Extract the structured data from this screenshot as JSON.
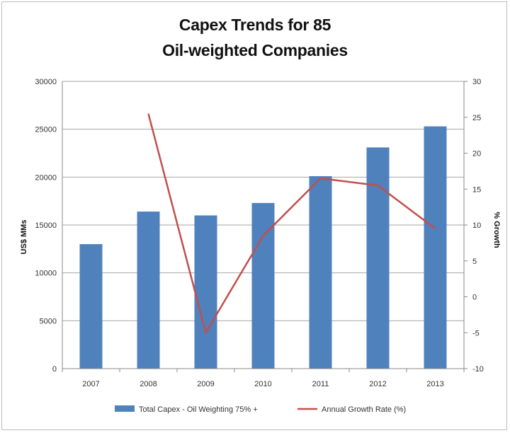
{
  "chart_data": {
    "type": "bar",
    "title_line1": "Capex Trends for 85",
    "title_line2": "Oil-weighted Companies",
    "categories": [
      "2007",
      "2008",
      "2009",
      "2010",
      "2011",
      "2012",
      "2013"
    ],
    "series": [
      {
        "name": "Total Capex - Oil Weighting 75% +",
        "type": "bar",
        "axis": "left",
        "color": "#4f81bd",
        "values": [
          13000,
          16400,
          16000,
          17300,
          20100,
          23100,
          25300
        ]
      },
      {
        "name": "Annual Growth Rate (%)",
        "type": "line",
        "axis": "right",
        "color": "#c0504d",
        "values": [
          null,
          25.5,
          -5,
          8.5,
          16.5,
          15.5,
          9.5
        ]
      }
    ],
    "ylabel": "US$ MMs",
    "y2label": "% Growth",
    "ylim": [
      0,
      30000
    ],
    "y2lim": [
      -10,
      30
    ],
    "yticks": [
      "0",
      "5000",
      "10000",
      "15000",
      "20000",
      "25000",
      "30000"
    ],
    "y2ticks": [
      "-10",
      "-5",
      "0",
      "5",
      "10",
      "15",
      "20",
      "25",
      "30"
    ],
    "grid": true,
    "legend_position": "bottom"
  }
}
